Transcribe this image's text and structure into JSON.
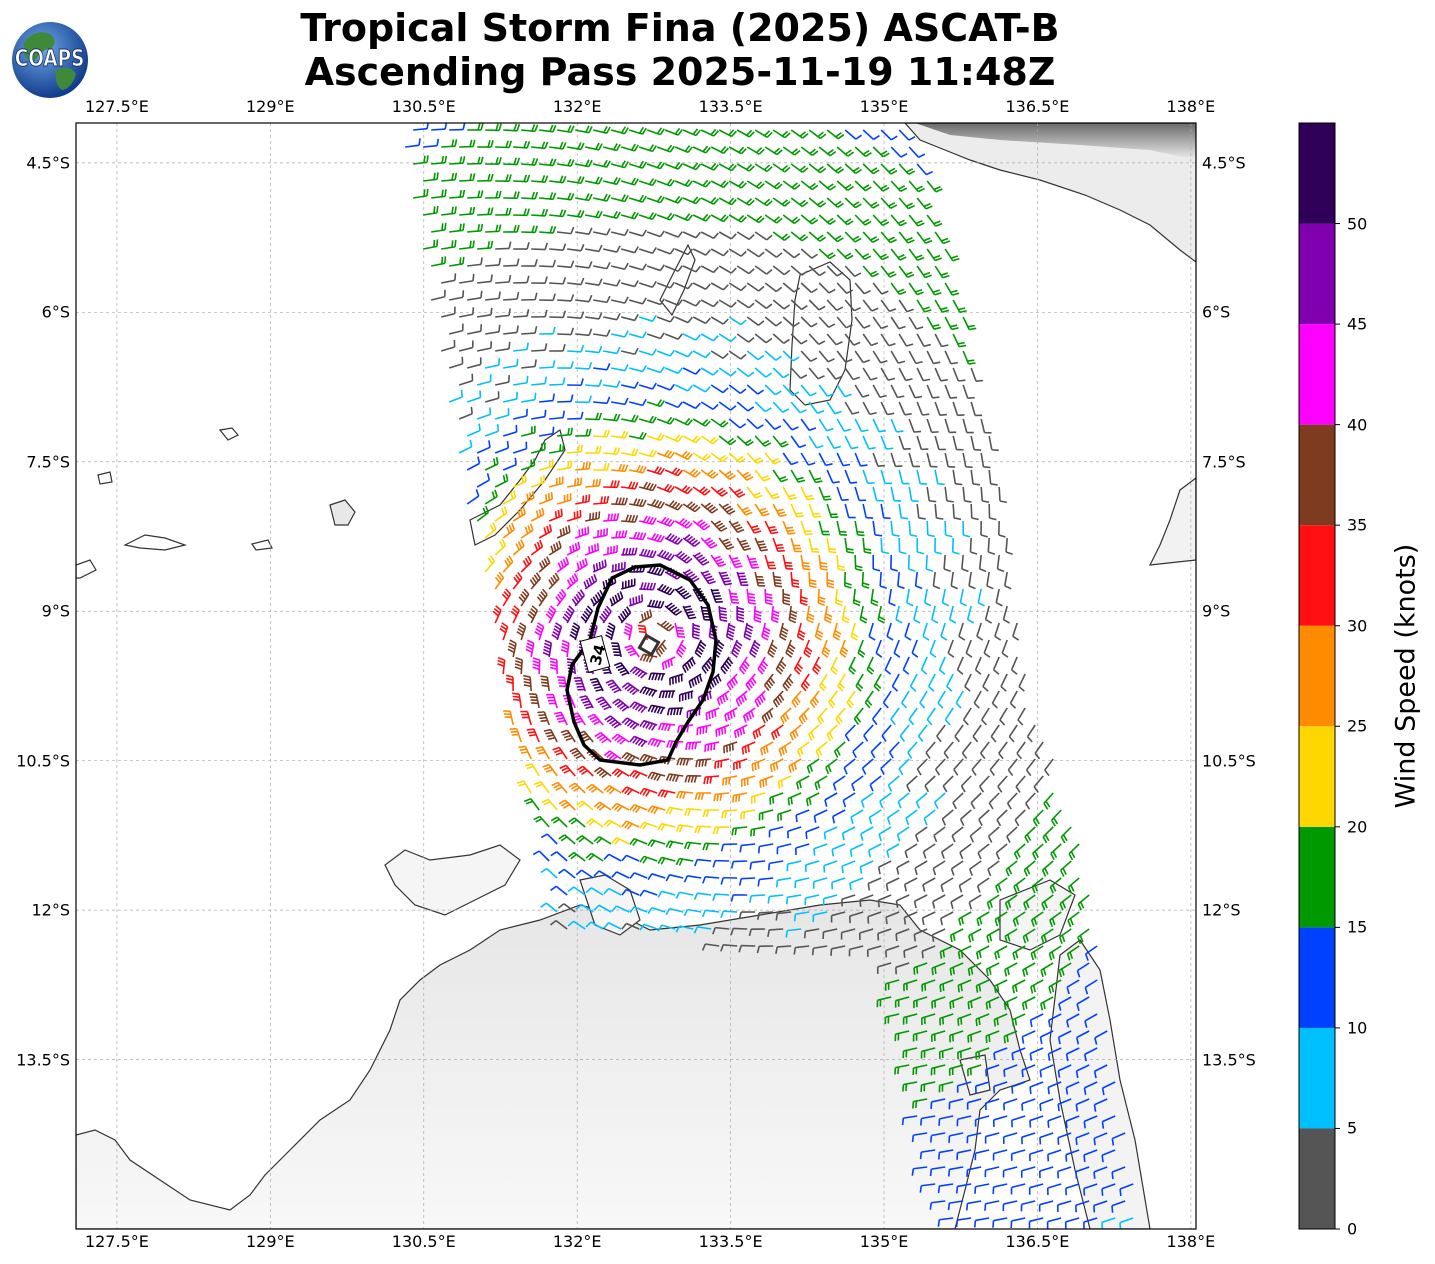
{
  "title": {
    "line1": "Tropical Storm Fina (2025) ASCAT-B",
    "line2": "Ascending Pass 2025-11-19 11:48Z"
  },
  "logo": {
    "text": "COAPS",
    "icon": "globe-icon"
  },
  "map": {
    "lon_range": [
      127.1,
      138.05
    ],
    "lat_range": [
      -15.2,
      -4.1
    ],
    "lon_ticks": [
      "127.5°E",
      "129°E",
      "130.5°E",
      "132°E",
      "133.5°E",
      "135°E",
      "136.5°E",
      "138°E"
    ],
    "lat_ticks": [
      "4.5°S",
      "6°S",
      "7.5°S",
      "9°S",
      "10.5°S",
      "12°S",
      "13.5°S"
    ],
    "gridlines": true,
    "contour_label": "34",
    "storm_center": {
      "lon": 132.75,
      "lat": -9.25
    }
  },
  "colorbar": {
    "label": "Wind Speed (knots)",
    "ticks": [
      "0",
      "5",
      "10",
      "15",
      "20",
      "25",
      "30",
      "35",
      "40",
      "45",
      "50"
    ],
    "bins": [
      {
        "min": 0,
        "max": 5,
        "color": "#555555"
      },
      {
        "min": 5,
        "max": 10,
        "color": "#00bfff"
      },
      {
        "min": 10,
        "max": 15,
        "color": "#0040ff"
      },
      {
        "min": 15,
        "max": 20,
        "color": "#009900"
      },
      {
        "min": 20,
        "max": 25,
        "color": "#ffd700"
      },
      {
        "min": 25,
        "max": 30,
        "color": "#ff8c00"
      },
      {
        "min": 30,
        "max": 35,
        "color": "#ff0f0f"
      },
      {
        "min": 35,
        "max": 40,
        "color": "#7f3b1f"
      },
      {
        "min": 40,
        "max": 45,
        "color": "#ff00ff"
      },
      {
        "min": 45,
        "max": 50,
        "color": "#8000b0"
      },
      {
        "min": 50,
        "max": 55,
        "color": "#2e0057"
      }
    ]
  }
}
